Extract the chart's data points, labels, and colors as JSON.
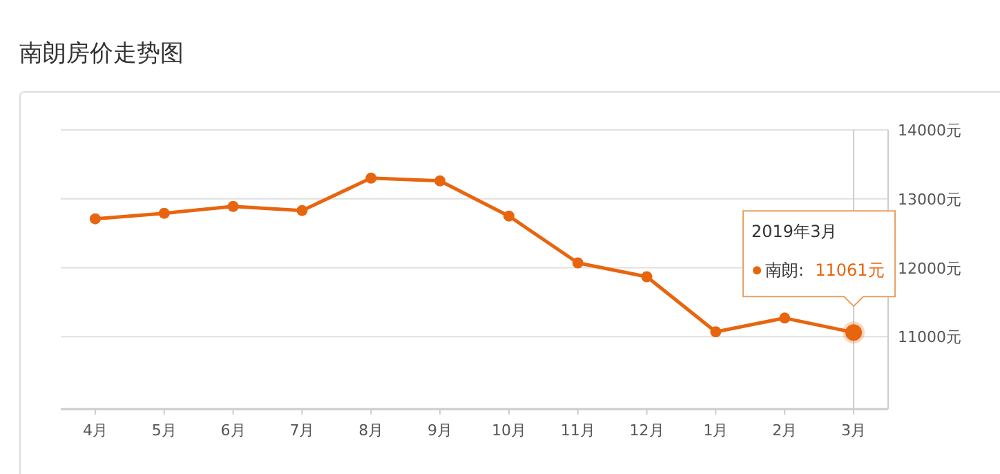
{
  "chart_data": {
    "type": "line",
    "title": "南朗房价走势图",
    "categories": [
      "4月",
      "5月",
      "6月",
      "7月",
      "8月",
      "9月",
      "10月",
      "11月",
      "12月",
      "1月",
      "2月",
      "3月"
    ],
    "series": [
      {
        "name": "南朗:",
        "color": "#e8650f",
        "values": [
          12710,
          12790,
          12890,
          12830,
          13300,
          13260,
          12750,
          12070,
          11870,
          11070,
          11270,
          11061
        ],
        "value_labels": [
          null,
          null,
          null,
          null,
          null,
          null,
          null,
          null,
          null,
          null,
          null,
          "11061元"
        ]
      }
    ],
    "ylim": [
      9950,
      14000
    ],
    "yticks": [
      {
        "value": 11000,
        "label": "11000元"
      },
      {
        "value": 12000,
        "label": "12000元"
      },
      {
        "value": 13000,
        "label": "13000元"
      },
      {
        "value": 14000,
        "label": "14000元"
      }
    ],
    "annotations": [
      "2019年3月"
    ],
    "ref_lines": [
      {
        "axis": "x",
        "value": "3月",
        "color": "#cccccc"
      }
    ],
    "grid": "y",
    "marker": "circle",
    "line_style": "solid",
    "legend": "right"
  }
}
